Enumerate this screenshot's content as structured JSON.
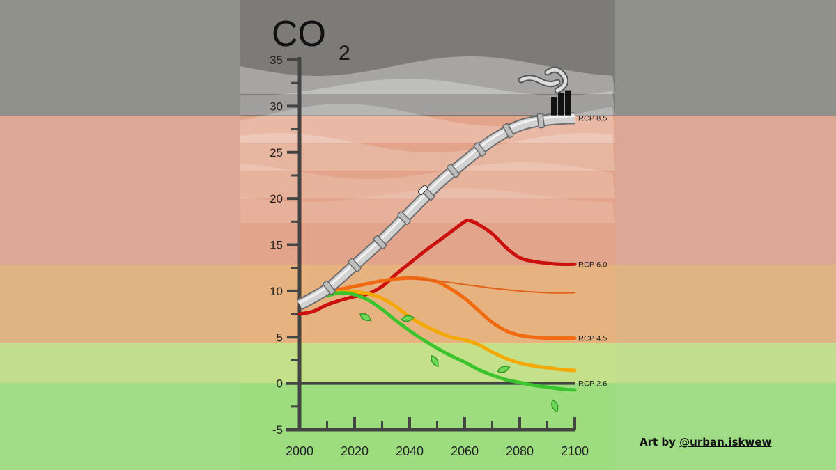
{
  "chart_data": {
    "type": "line",
    "title": "CO",
    "title_subscript": "2",
    "xlabel": "",
    "ylabel": "",
    "xlim": [
      2000,
      2100
    ],
    "ylim": [
      -5,
      35
    ],
    "x_ticks": [
      2000,
      2020,
      2040,
      2060,
      2080,
      2100
    ],
    "y_ticks": [
      -5,
      0,
      5,
      10,
      15,
      20,
      25,
      30,
      35
    ],
    "grid": false,
    "legend": "none",
    "series": [
      {
        "name": "RCP 8.5",
        "color": "#d2d2d2",
        "style": "pipe",
        "x": [
          2000,
          2010,
          2020,
          2030,
          2040,
          2050,
          2060,
          2070,
          2080,
          2090,
          2100
        ],
        "y": [
          8.5,
          10.2,
          12.8,
          15.5,
          18.5,
          21.5,
          24.0,
          26.3,
          27.9,
          28.5,
          28.7
        ]
      },
      {
        "name": "RCP 6.0",
        "color": "#cc0f0f",
        "x": [
          2000,
          2005,
          2010,
          2015,
          2020,
          2025,
          2030,
          2035,
          2040,
          2045,
          2050,
          2055,
          2060,
          2062,
          2065,
          2070,
          2075,
          2080,
          2085,
          2090,
          2095,
          2100
        ],
        "y": [
          7.5,
          7.8,
          8.5,
          9.0,
          9.4,
          9.7,
          10.5,
          11.8,
          13.0,
          14.2,
          15.3,
          16.4,
          17.5,
          17.6,
          17.2,
          16.2,
          14.7,
          13.6,
          13.2,
          13.0,
          12.9,
          12.9
        ]
      },
      {
        "name": "RCP 4.5",
        "color": "#f26a10",
        "x": [
          2010,
          2015,
          2020,
          2025,
          2030,
          2035,
          2040,
          2045,
          2050,
          2055,
          2060,
          2065,
          2070,
          2075,
          2080,
          2085,
          2090,
          2095,
          2100
        ],
        "y": [
          10.0,
          10.2,
          10.5,
          10.8,
          11.1,
          11.3,
          11.4,
          11.3,
          11.0,
          10.2,
          9.2,
          7.9,
          6.6,
          5.7,
          5.2,
          5.0,
          4.9,
          4.9,
          4.9
        ]
      },
      {
        "name": "",
        "color": "#e0631a",
        "thin": true,
        "x": [
          2040,
          2050,
          2060,
          2070,
          2080,
          2090,
          2100
        ],
        "y": [
          11.4,
          11.1,
          10.7,
          10.3,
          10.0,
          9.8,
          9.8
        ]
      },
      {
        "name": "",
        "color": "#f5a800",
        "x": [
          2010,
          2015,
          2020,
          2025,
          2030,
          2035,
          2040,
          2045,
          2050,
          2055,
          2060,
          2065,
          2070,
          2075,
          2080,
          2085,
          2090,
          2095,
          2100
        ],
        "y": [
          9.6,
          9.9,
          9.9,
          9.7,
          9.2,
          8.3,
          7.2,
          6.3,
          5.6,
          5.0,
          4.7,
          4.2,
          3.4,
          2.7,
          2.2,
          1.9,
          1.7,
          1.5,
          1.4
        ]
      },
      {
        "name": "RCP 2.6",
        "color": "#3cc42f",
        "x": [
          2010,
          2015,
          2020,
          2025,
          2030,
          2035,
          2040,
          2045,
          2050,
          2055,
          2060,
          2065,
          2070,
          2075,
          2080,
          2085,
          2090,
          2095,
          2100
        ],
        "y": [
          9.5,
          9.8,
          9.6,
          9.0,
          8.0,
          6.8,
          5.7,
          4.7,
          3.8,
          3.0,
          2.3,
          1.5,
          0.9,
          0.4,
          0.1,
          -0.2,
          -0.4,
          -0.6,
          -0.7
        ]
      }
    ]
  },
  "credit": {
    "prefix": "Art by ",
    "handle": "@urban.iskwew"
  }
}
